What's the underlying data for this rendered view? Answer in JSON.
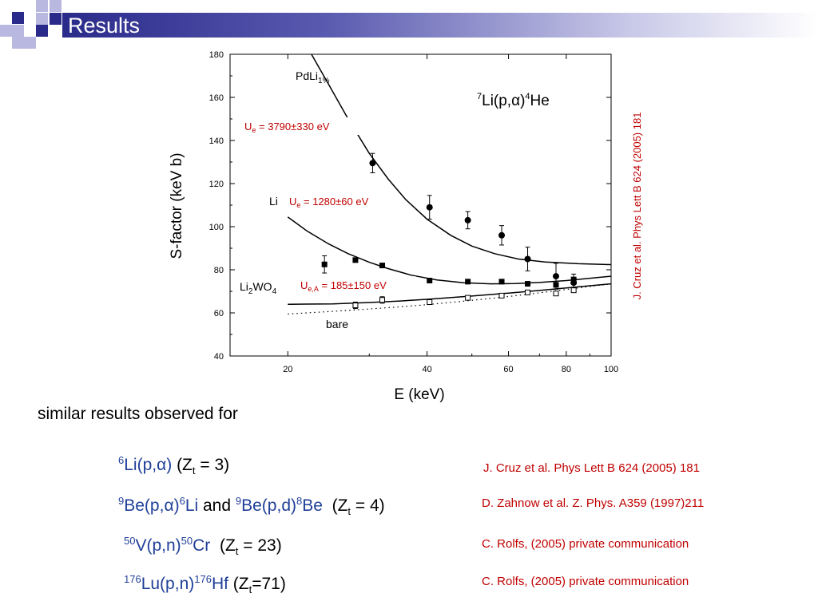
{
  "slide": {
    "title": "Results",
    "summary": "similar results observed for"
  },
  "reactions": [
    {
      "sup_a": "6",
      "text_a": "Li(p,",
      "alpha": "α",
      "close": ")",
      "mid": " (Z",
      "sub": "t",
      "tail": " = 3)"
    },
    {
      "sup_a": "9",
      "text_a": "Be(p,",
      "alpha": "α",
      "close": ")",
      "sup_b": "6",
      "text_b": "Li",
      "and": " and ",
      "sup_c": "9",
      "text_c": "Be(p,d)",
      "sup_d": "8",
      "text_d": "Be",
      "mid": "  (Z",
      "sub": "t",
      "tail": " = 4)"
    },
    {
      "sup_a": "50",
      "text_a": "V(p,n)",
      "sup_b": "50",
      "text_b": "Cr",
      "mid": "  (Z",
      "sub": "t",
      "tail": " = 23)"
    },
    {
      "sup_a": "176",
      "text_a": "Lu(p,n)",
      "sup_b": "176",
      "text_b": "Hf",
      "mid": " (Z",
      "sub": "t",
      "tail": "=71)"
    }
  ],
  "references": [
    "J. Cruz et al. Phys Lett B 624 (2005) 181",
    "D. Zahnow et al. Z. Phys. A359 (1997)211",
    "C. Rolfs, (2005) private communication",
    "C. Rolfs, (2005) private communication"
  ],
  "colors": {
    "title_bar": "#2a2a8a",
    "reaction_text": "#1f3f99",
    "reference_text": "#c00000",
    "deco_dark": "#2a2a8a",
    "deco_light": "#b8b8e0"
  },
  "chart_data": {
    "type": "scatter",
    "xlabel": "E (keV)",
    "ylabel": "S-factor (keV b)",
    "x_scale": "log",
    "xlim": [
      15,
      100
    ],
    "ylim": [
      40,
      180
    ],
    "x_ticks": [
      20,
      40,
      60,
      80,
      100
    ],
    "y_ticks": [
      40,
      60,
      80,
      100,
      120,
      140,
      160,
      180
    ],
    "reaction_label": {
      "sup1": "7",
      "main1": "Li(p,",
      "alpha": "α",
      "close": ")",
      "sup2": "4",
      "main2": "He"
    },
    "side_reference": "J. Cruz et al. Phys Lett B 624 (2005) 181",
    "series": [
      {
        "name": "PdLi1%",
        "label_main": "PdLi",
        "label_sub": "1%",
        "marker": "circle",
        "annotation": {
          "prefix": "U",
          "sub": "e",
          "text": " = 3790±330 eV"
        },
        "points": [
          {
            "x": 30.5,
            "y": 129.5,
            "err": 4.5
          },
          {
            "x": 40.5,
            "y": 109,
            "err": 5.5
          },
          {
            "x": 49,
            "y": 103,
            "err": 4
          },
          {
            "x": 58,
            "y": 96,
            "err": 4.5
          },
          {
            "x": 66,
            "y": 85,
            "err": 5.5
          },
          {
            "x": 76,
            "y": 77,
            "err": 6
          },
          {
            "x": 83,
            "y": 74,
            "err": 4
          }
        ],
        "curve": [
          [
            22.5,
            180
          ],
          [
            24.5,
            166
          ],
          [
            27,
            150
          ],
          [
            30,
            134
          ],
          [
            33,
            122
          ],
          [
            36,
            112.5
          ],
          [
            40,
            103.5
          ],
          [
            45,
            96
          ],
          [
            50,
            91
          ],
          [
            56,
            87.5
          ],
          [
            63,
            85
          ],
          [
            72,
            83.6
          ],
          [
            85,
            82.8
          ],
          [
            100,
            82.4
          ]
        ]
      },
      {
        "name": "Li",
        "label_main": "Li",
        "marker": "square",
        "annotation": {
          "prefix": "U",
          "sub": "e",
          "text": " = 1280±60 eV"
        },
        "points": [
          {
            "x": 24,
            "y": 82.5,
            "err": 4
          },
          {
            "x": 28,
            "y": 84.5,
            "err": 1
          },
          {
            "x": 32,
            "y": 82,
            "err": 1
          },
          {
            "x": 40.5,
            "y": 75,
            "err": 1
          },
          {
            "x": 49,
            "y": 74.5,
            "err": 1
          },
          {
            "x": 58,
            "y": 74.5,
            "err": 1
          },
          {
            "x": 66,
            "y": 73.5,
            "err": 1
          },
          {
            "x": 76,
            "y": 73,
            "err": 1
          },
          {
            "x": 83,
            "y": 75.5,
            "err": 1
          }
        ],
        "curve": [
          [
            20,
            104.5
          ],
          [
            22,
            98
          ],
          [
            24.5,
            92
          ],
          [
            27,
            87.5
          ],
          [
            30,
            83.5
          ],
          [
            33,
            80.5
          ],
          [
            37,
            77.5
          ],
          [
            42,
            75.3
          ],
          [
            48,
            74
          ],
          [
            55,
            73.5
          ],
          [
            62,
            73.6
          ],
          [
            70,
            74.1
          ],
          [
            80,
            75
          ],
          [
            100,
            77
          ]
        ]
      },
      {
        "name": "Li2WO4",
        "label_main": "Li",
        "label_sub": "2",
        "label_tail": "WO",
        "label_sub2": "4",
        "marker": "open-square",
        "annotation": {
          "prefix": "U",
          "sub": "e,A",
          "text": " = 185±150 eV"
        },
        "points": [
          {
            "x": 28,
            "y": 63.5,
            "err": 1.5
          },
          {
            "x": 32,
            "y": 66,
            "err": 1.5
          },
          {
            "x": 40.5,
            "y": 65,
            "err": 1
          },
          {
            "x": 49,
            "y": 67,
            "err": 1
          },
          {
            "x": 58,
            "y": 68,
            "err": 1
          },
          {
            "x": 66,
            "y": 69.5,
            "err": 1
          },
          {
            "x": 76,
            "y": 69,
            "err": 1
          },
          {
            "x": 83,
            "y": 70.5,
            "err": 1
          }
        ],
        "curve": [
          [
            20,
            64
          ],
          [
            25,
            64.2
          ],
          [
            30,
            64.8
          ],
          [
            35,
            65.5
          ],
          [
            40,
            66.3
          ],
          [
            50,
            67.8
          ],
          [
            60,
            69.2
          ],
          [
            70,
            70.4
          ],
          [
            80,
            71.6
          ],
          [
            100,
            73.5
          ]
        ]
      },
      {
        "name": "bare",
        "label_main": "bare",
        "marker": "none",
        "line_style": "dotted",
        "curve": [
          [
            20,
            59.5
          ],
          [
            25,
            60.7
          ],
          [
            30,
            61.8
          ],
          [
            35,
            62.8
          ],
          [
            40,
            63.8
          ],
          [
            50,
            65.8
          ],
          [
            60,
            67.6
          ],
          [
            70,
            69.3
          ],
          [
            80,
            70.9
          ],
          [
            100,
            73.5
          ]
        ]
      }
    ]
  }
}
